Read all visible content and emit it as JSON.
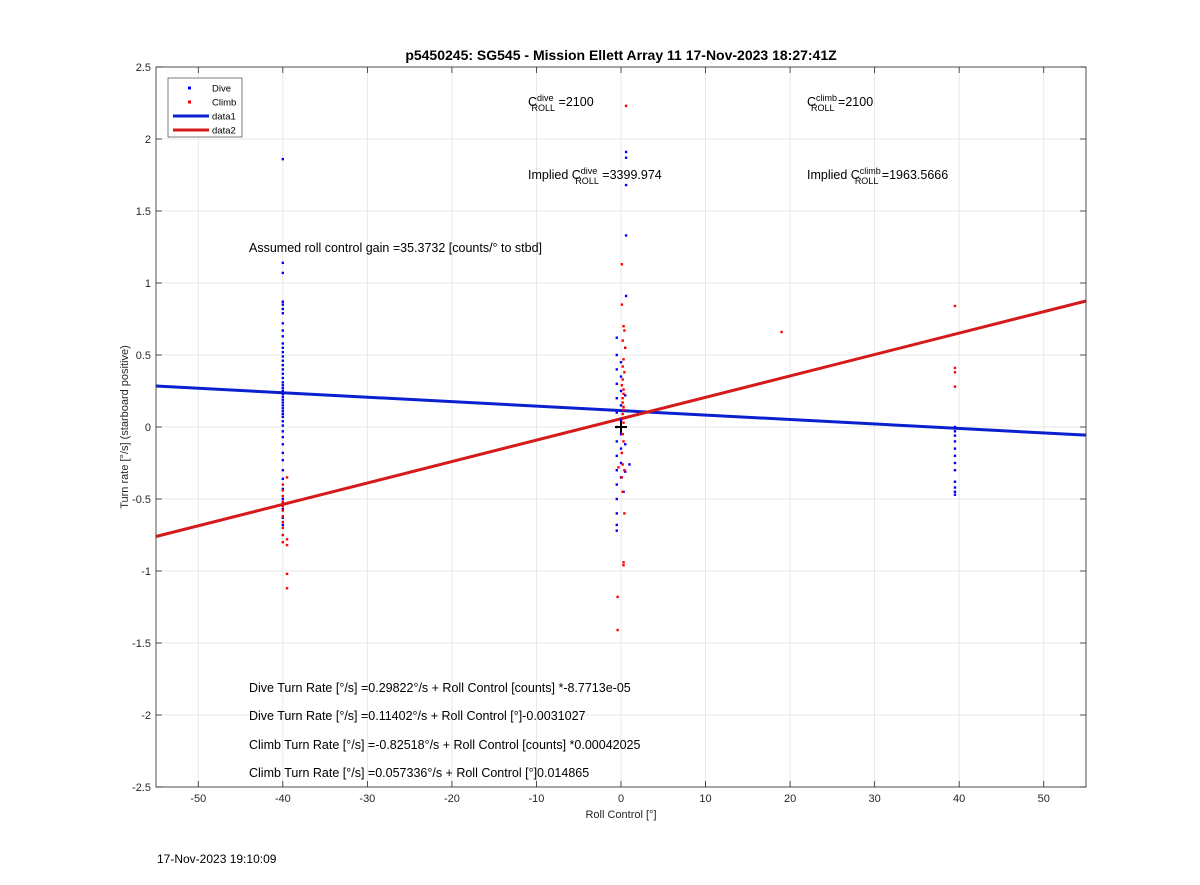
{
  "footer_timestamp": "17-Nov-2023 19:10:09",
  "chart_data": {
    "type": "scatter",
    "title": "p5450245: SG545 - Mission Ellett Array 11 17-Nov-2023 18:27:41Z",
    "xlabel": "Roll Control [°]",
    "ylabel": "Turn rate [°/s] (starboard positive)",
    "xlim": [
      -55,
      55
    ],
    "ylim": [
      -2.5,
      2.5
    ],
    "xticks": [
      -50,
      -40,
      -30,
      -20,
      -10,
      0,
      10,
      20,
      30,
      40,
      50
    ],
    "yticks": [
      -2.5,
      -2,
      -1.5,
      -1,
      -0.5,
      0,
      0.5,
      1,
      1.5,
      2,
      2.5
    ],
    "grid": true,
    "legend_position": "top-left",
    "legend": [
      {
        "label": "Dive",
        "style": "dot",
        "color": "#0000ff"
      },
      {
        "label": "Climb",
        "style": "dot",
        "color": "#ff0000"
      },
      {
        "label": "data1",
        "style": "line",
        "color": "#0a1fd0"
      },
      {
        "label": "data2",
        "style": "line",
        "color": "#d41a1a"
      }
    ],
    "series": [
      {
        "name": "Dive",
        "kind": "points",
        "color": "#0000ff",
        "points": [
          [
            -40,
            1.86
          ],
          [
            -40,
            1.14
          ],
          [
            -40,
            1.07
          ],
          [
            -40,
            0.87
          ],
          [
            -40,
            0.85
          ],
          [
            -40,
            0.82
          ],
          [
            -40,
            0.79
          ],
          [
            -40,
            0.72
          ],
          [
            -40,
            0.67
          ],
          [
            -40,
            0.63
          ],
          [
            -40,
            0.58
          ],
          [
            -40,
            0.55
          ],
          [
            -40,
            0.52
          ],
          [
            -40,
            0.49
          ],
          [
            -40,
            0.46
          ],
          [
            -40,
            0.43
          ],
          [
            -40,
            0.4
          ],
          [
            -40,
            0.37
          ],
          [
            -40,
            0.34
          ],
          [
            -40,
            0.31
          ],
          [
            -40,
            0.29
          ],
          [
            -40,
            0.27
          ],
          [
            -40,
            0.25
          ],
          [
            -40,
            0.23
          ],
          [
            -40,
            0.21
          ],
          [
            -40,
            0.19
          ],
          [
            -40,
            0.17
          ],
          [
            -40,
            0.15
          ],
          [
            -40,
            0.13
          ],
          [
            -40,
            0.11
          ],
          [
            -40,
            0.09
          ],
          [
            -40,
            0.07
          ],
          [
            -40,
            0.04
          ],
          [
            -40,
            0.01
          ],
          [
            -40,
            -0.03
          ],
          [
            -40,
            -0.07
          ],
          [
            -40,
            -0.12
          ],
          [
            -40,
            -0.18
          ],
          [
            -40,
            -0.23
          ],
          [
            -40,
            -0.3
          ],
          [
            -40,
            -0.36
          ],
          [
            -40,
            -0.43
          ],
          [
            -40,
            -0.5
          ],
          [
            -40,
            -0.57
          ],
          [
            -40,
            -0.63
          ],
          [
            -40,
            -0.68
          ],
          [
            0.6,
            1.91
          ],
          [
            0.6,
            1.87
          ],
          [
            0.6,
            1.68
          ],
          [
            0.6,
            1.33
          ],
          [
            0.6,
            0.91
          ],
          [
            -0.5,
            0.62
          ],
          [
            -0.5,
            0.5
          ],
          [
            -0.5,
            0.4
          ],
          [
            -0.5,
            0.3
          ],
          [
            -0.5,
            0.2
          ],
          [
            -0.5,
            0.1
          ],
          [
            -0.5,
            0.0
          ],
          [
            -0.5,
            -0.1
          ],
          [
            -0.5,
            -0.2
          ],
          [
            -0.5,
            -0.3
          ],
          [
            -0.5,
            -0.4
          ],
          [
            -0.5,
            -0.5
          ],
          [
            -0.5,
            -0.6
          ],
          [
            -0.5,
            -0.68
          ],
          [
            -0.5,
            -0.72
          ],
          [
            0,
            0.45
          ],
          [
            0,
            0.35
          ],
          [
            0,
            0.25
          ],
          [
            0,
            0.15
          ],
          [
            0,
            0.05
          ],
          [
            0,
            -0.05
          ],
          [
            0,
            -0.15
          ],
          [
            0,
            -0.25
          ],
          [
            0,
            -0.35
          ],
          [
            0.5,
            0.55
          ],
          [
            0.5,
            0.22
          ],
          [
            0.5,
            -0.12
          ],
          [
            0.5,
            -0.31
          ],
          [
            0.3,
            -0.45
          ],
          [
            1.0,
            -0.26
          ],
          [
            39.5,
            0.0
          ],
          [
            39.5,
            -0.03
          ],
          [
            39.5,
            -0.06
          ],
          [
            39.5,
            -0.1
          ],
          [
            39.5,
            -0.15
          ],
          [
            39.5,
            -0.2
          ],
          [
            39.5,
            -0.25
          ],
          [
            39.5,
            -0.3
          ],
          [
            39.5,
            -0.38
          ],
          [
            39.5,
            -0.42
          ],
          [
            39.5,
            -0.45
          ],
          [
            39.5,
            -0.47
          ]
        ]
      },
      {
        "name": "Climb",
        "kind": "points",
        "color": "#ff0000",
        "points": [
          [
            0.6,
            2.23
          ],
          [
            0.1,
            1.13
          ],
          [
            0.1,
            0.85
          ],
          [
            0.3,
            0.7
          ],
          [
            0.4,
            0.67
          ],
          [
            0.2,
            0.6
          ],
          [
            0.5,
            0.55
          ],
          [
            0.3,
            0.47
          ],
          [
            0.2,
            0.42
          ],
          [
            0.4,
            0.38
          ],
          [
            0.2,
            0.33
          ],
          [
            0.1,
            0.29
          ],
          [
            0.3,
            0.26
          ],
          [
            0.3,
            0.23
          ],
          [
            0.2,
            0.2
          ],
          [
            0.2,
            0.17
          ],
          [
            0.3,
            0.14
          ],
          [
            0.3,
            0.12
          ],
          [
            0.2,
            0.09
          ],
          [
            0.2,
            0.06
          ],
          [
            0.3,
            0.03
          ],
          [
            0.2,
            -0.05
          ],
          [
            0.3,
            -0.1
          ],
          [
            0.1,
            -0.18
          ],
          [
            0.2,
            -0.26
          ],
          [
            0.4,
            -0.3
          ],
          [
            0.1,
            -0.35
          ],
          [
            0.2,
            -0.45
          ],
          [
            0.4,
            -0.6
          ],
          [
            0.3,
            -0.94
          ],
          [
            0.3,
            -0.96
          ],
          [
            -0.4,
            -1.18
          ],
          [
            -0.4,
            -1.41
          ],
          [
            -0.3,
            -0.28
          ],
          [
            -40,
            -0.4
          ],
          [
            -40,
            -0.44
          ],
          [
            -40,
            -0.48
          ],
          [
            -40,
            -0.52
          ],
          [
            -40,
            -0.55
          ],
          [
            -40,
            -0.58
          ],
          [
            -40,
            -0.62
          ],
          [
            -40,
            -0.66
          ],
          [
            -40,
            -0.7
          ],
          [
            -40,
            -0.75
          ],
          [
            -40,
            -0.8
          ],
          [
            -39.5,
            -0.35
          ],
          [
            -39.5,
            -0.78
          ],
          [
            -39.5,
            -0.82
          ],
          [
            -39.5,
            -1.02
          ],
          [
            -39.5,
            -1.12
          ],
          [
            19,
            0.66
          ],
          [
            39.5,
            0.84
          ],
          [
            39.5,
            0.41
          ],
          [
            39.5,
            0.38
          ],
          [
            39.5,
            0.28
          ]
        ]
      },
      {
        "name": "data1",
        "kind": "line",
        "color": "#0a1fd0",
        "x": [
          -55,
          55
        ],
        "y": [
          0.2846,
          -0.0566
        ]
      },
      {
        "name": "data2",
        "kind": "line",
        "color": "#d41a1a",
        "x": [
          -55,
          55
        ],
        "y": [
          -0.7604,
          0.8751
        ]
      }
    ],
    "origin_marker": {
      "x": 0,
      "y": 0,
      "symbol": "+"
    },
    "annotations": {
      "c_roll_dive": {
        "base": "C",
        "sup": "dive",
        "sub": "ROLL",
        "value": " =2100"
      },
      "c_roll_climb": {
        "base": "C",
        "sup": "climb",
        "sub": "ROLL",
        "value": " =2100"
      },
      "implied_dive": {
        "prefix": "Implied C",
        "sup": "dive",
        "sub": "ROLL",
        "value": " =3399.974"
      },
      "implied_climb": {
        "prefix": "Implied C",
        "sup": "climb",
        "sub": "ROLL",
        "value": " =1963.5666"
      },
      "assumed_gain": "Assumed roll control gain =35.3732 [counts/° to stbd]",
      "equations": [
        "Dive Turn Rate [°/s] =0.29822°/s + Roll Control [counts] *-8.7713e-05",
        "Dive Turn Rate [°/s] =0.11402°/s + Roll Control [°]-0.0031027",
        "Climb Turn Rate [°/s] =-0.82518°/s + Roll Control [counts] *0.00042025",
        "Climb Turn Rate [°/s] =0.057336°/s + Roll Control [°]0.014865"
      ]
    }
  }
}
